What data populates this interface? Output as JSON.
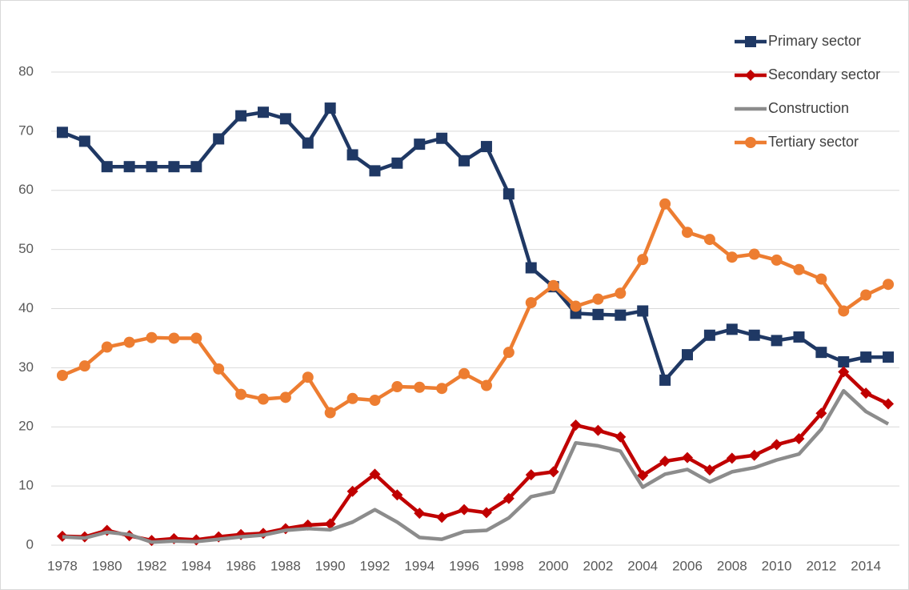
{
  "chart_data": {
    "type": "line",
    "categories": [
      "1978",
      null,
      "1980",
      null,
      "1982",
      null,
      "1984",
      null,
      "1986",
      null,
      "1988",
      null,
      "1990",
      null,
      "1992",
      null,
      "1994",
      null,
      "1996",
      null,
      "1998",
      null,
      "2000",
      null,
      "2002",
      null,
      "2004",
      null,
      "2006",
      null,
      "2008",
      null,
      "2010",
      null,
      "2012",
      null,
      "2014",
      null
    ],
    "series": [
      {
        "name": "Primary sector",
        "color": "#1f3864",
        "marker": "square",
        "values": [
          69.8,
          68.3,
          64,
          64,
          64,
          64,
          64,
          68.7,
          72.6,
          73.2,
          72.1,
          68,
          73.9,
          66,
          63.3,
          64.6,
          67.8,
          68.8,
          65,
          67.4,
          59.4,
          46.9,
          43.7,
          39.2,
          39,
          38.9,
          39.6,
          27.9,
          32.2,
          35.5,
          36.5,
          35.5,
          34.6,
          35.2,
          32.6,
          31,
          31.8,
          31.8
        ]
      },
      {
        "name": "Secondary sector",
        "color": "#c00000",
        "marker": "diamond",
        "values": [
          1.5,
          1.4,
          2.5,
          1.6,
          0.8,
          1.1,
          0.9,
          1.4,
          1.8,
          2,
          2.8,
          3.4,
          3.6,
          9.1,
          12,
          8.5,
          5.4,
          4.7,
          6,
          5.5,
          7.9,
          11.9,
          12.4,
          20.3,
          19.4,
          18.3,
          11.8,
          14.2,
          14.8,
          12.7,
          14.7,
          15.2,
          17,
          18,
          22.3,
          29.3,
          25.7,
          23.9
        ]
      },
      {
        "name": "Construction",
        "color": "#8c8c8c",
        "marker": "none",
        "values": [
          1.4,
          1.2,
          2.2,
          1.8,
          0.5,
          0.7,
          0.6,
          1,
          1.4,
          1.7,
          2.5,
          2.8,
          2.6,
          3.9,
          6,
          3.9,
          1.3,
          1,
          2.3,
          2.5,
          4.6,
          8.2,
          9,
          17.3,
          16.8,
          15.9,
          9.8,
          12,
          12.8,
          10.7,
          12.4,
          13.1,
          14.4,
          15.4,
          19.6,
          26.1,
          22.6,
          20.5
        ]
      },
      {
        "name": "Tertiary sector",
        "color": "#ed7d31",
        "marker": "circle",
        "values": [
          28.7,
          30.3,
          33.5,
          34.3,
          35.1,
          35,
          35,
          29.8,
          25.5,
          24.7,
          25,
          28.4,
          22.4,
          24.8,
          24.5,
          26.8,
          26.7,
          26.5,
          29,
          27,
          32.6,
          41,
          43.9,
          40.4,
          41.6,
          42.6,
          48.3,
          57.7,
          52.9,
          51.7,
          48.7,
          49.2,
          48.2,
          46.6,
          45,
          39.6,
          42.3,
          44.1
        ]
      }
    ],
    "ylim": [
      0,
      80
    ],
    "yticks": [
      0,
      10,
      20,
      30,
      40,
      50,
      60,
      70,
      80
    ],
    "grid": true,
    "legend": "top-right"
  }
}
